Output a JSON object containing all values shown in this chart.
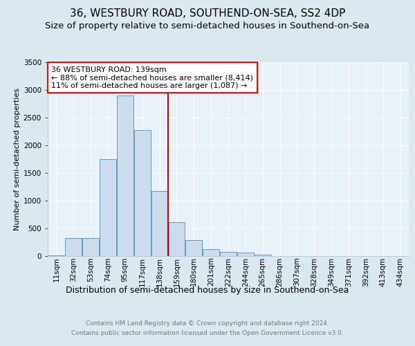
{
  "title1": "36, WESTBURY ROAD, SOUTHEND-ON-SEA, SS2 4DP",
  "title2": "Size of property relative to semi-detached houses in Southend-on-Sea",
  "xlabel": "Distribution of semi-detached houses by size in Southend-on-Sea",
  "ylabel": "Number of semi-detached properties",
  "footnote1": "Contains HM Land Registry data © Crown copyright and database right 2024.",
  "footnote2": "Contains public sector information licensed under the Open Government Licence v3.0.",
  "annotation_line1": "36 WESTBURY ROAD: 139sqm",
  "annotation_line2": "← 88% of semi-detached houses are smaller (8,414)",
  "annotation_line3": "11% of semi-detached houses are larger (1,087) →",
  "bar_labels": [
    "11sqm",
    "32sqm",
    "53sqm",
    "74sqm",
    "95sqm",
    "117sqm",
    "138sqm",
    "159sqm",
    "180sqm",
    "201sqm",
    "222sqm",
    "244sqm",
    "265sqm",
    "286sqm",
    "307sqm",
    "328sqm",
    "349sqm",
    "371sqm",
    "392sqm",
    "413sqm",
    "434sqm"
  ],
  "bar_heights": [
    10,
    320,
    320,
    1750,
    2900,
    2280,
    1180,
    610,
    290,
    120,
    70,
    60,
    30,
    5,
    0,
    0,
    0,
    0,
    0,
    0,
    0
  ],
  "bar_color": "#ccdcec",
  "bar_edge_color": "#6699bb",
  "vline_x_index": 6,
  "vline_color": "#cc0000",
  "ylim": [
    0,
    3500
  ],
  "yticks": [
    0,
    500,
    1000,
    1500,
    2000,
    2500,
    3000,
    3500
  ],
  "bg_color": "#dce8f0",
  "plot_bg_color": "#e8f2f8",
  "grid_color": "#ffffff",
  "title1_fontsize": 11,
  "title2_fontsize": 9.5,
  "annotation_fontsize": 8,
  "ylabel_fontsize": 8,
  "xlabel_fontsize": 9,
  "footnote_fontsize": 6.5,
  "tick_fontsize": 7.5
}
